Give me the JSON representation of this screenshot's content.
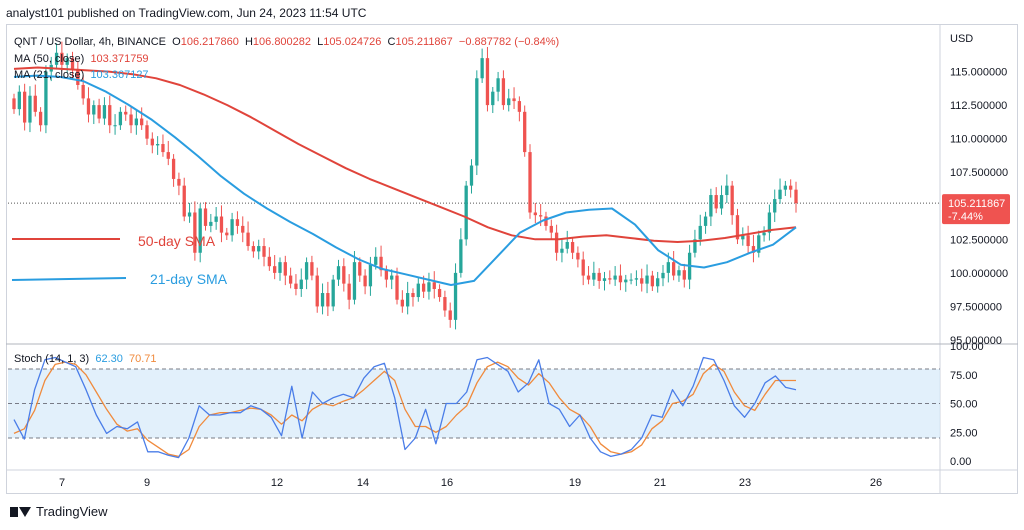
{
  "header": {
    "publisher": "analyst101 published on TradingView.com, Jun 24, 2023 11:54 UTC"
  },
  "legend": {
    "symbol": "QNT / US Dollar, 4h, BINANCE",
    "o_label": "O",
    "o": "106.217860",
    "h_label": "H",
    "h": "106.800282",
    "l_label": "L",
    "l": "105.024726",
    "c_label": "C",
    "c": "105.211867",
    "change": "−0.887782 (−0.84%)",
    "ma50_label": "MA (50, close)",
    "ma50": "103.371759",
    "ma21_label": "MA (21, close)",
    "ma21": "103.367127",
    "stoch_label": "Stoch (14, 1, 3)",
    "stoch_k": "62.30",
    "stoch_d": "70.71"
  },
  "annotations": {
    "sma50": "50-day SMA",
    "sma21": "21-day SMA"
  },
  "price_axis": {
    "currency": "USD",
    "ticks": [
      "115.000000",
      "112.500000",
      "110.000000",
      "107.500000",
      "102.500000",
      "100.000000",
      "97.500000",
      "95.000000"
    ],
    "last_price": "105.211867",
    "last_change": "-7.44%"
  },
  "stoch_axis": {
    "ticks": [
      "100.00",
      "75.00",
      "50.00",
      "25.00",
      "0.00"
    ]
  },
  "time_axis": {
    "ticks": [
      "7",
      "9",
      "12",
      "14",
      "16",
      "19",
      "21",
      "23",
      "26"
    ]
  },
  "footer": {
    "brand": "TradingView"
  },
  "colors": {
    "up": "#26a69a",
    "down": "#ef5350",
    "ma50": "#e0443b",
    "ma21": "#2a9de0",
    "stoch_k": "#4a7de8",
    "stoch_d": "#f08a3c",
    "band": "#d6e9f9"
  },
  "chart_data": [
    {
      "type": "candlestick",
      "title": "QNT / US Dollar, 4h, BINANCE",
      "ylabel": "USD",
      "ylim": [
        95,
        117.5
      ],
      "x_ticks": [
        "7",
        "9",
        "12",
        "14",
        "16",
        "19",
        "21",
        "23",
        "26"
      ],
      "closes": [
        112.2,
        113.5,
        111.2,
        113.2,
        112.0,
        111.0,
        115.0,
        115.5,
        116.4,
        115.5,
        116.0,
        115.2,
        114.0,
        113.0,
        111.8,
        112.5,
        111.5,
        112.5,
        111.0,
        111.0,
        112.0,
        111.8,
        111.0,
        111.5,
        111.0,
        110.0,
        109.5,
        109.6,
        109.0,
        108.5,
        107.0,
        106.5,
        104.2,
        104.5,
        101.5,
        104.8,
        103.5,
        103.8,
        104.2,
        103.0,
        102.8,
        104.0,
        103.5,
        103.0,
        102.0,
        101.6,
        102.0,
        101.2,
        100.5,
        100.0,
        100.8,
        99.8,
        99.2,
        98.8,
        99.5,
        100.8,
        99.8,
        97.5,
        98.5,
        97.5,
        99.5,
        100.5,
        99.2,
        98.0,
        100.8,
        99.8,
        99.0,
        100.6,
        101.2,
        100.2,
        99.5,
        99.8,
        98.0,
        97.5,
        98.5,
        98.2,
        99.2,
        98.6,
        99.3,
        98.8,
        98.2,
        97.2,
        96.5,
        100.0,
        102.5,
        106.5,
        108.0,
        114.5,
        116.0,
        112.5,
        113.5,
        114.5,
        112.5,
        113.0,
        112.8,
        112.0,
        109.0,
        104.5,
        104.3,
        104.2,
        103.5,
        103.0,
        101.5,
        101.8,
        102.3,
        101.5,
        101.0,
        99.8,
        99.5,
        100.0,
        99.4,
        99.6,
        99.5,
        99.8,
        99.3,
        99.5,
        99.5,
        99.6,
        99.2,
        99.8,
        99.0,
        99.6,
        100.0,
        100.8,
        99.8,
        100.2,
        99.5,
        101.5,
        102.5,
        103.5,
        104.2,
        105.8,
        104.8,
        105.8,
        106.5,
        104.3,
        102.5,
        102.8,
        102.0,
        101.5,
        102.8,
        103.0,
        104.5,
        105.5,
        106.2,
        106.5,
        106.2,
        105.2
      ],
      "series": [
        {
          "name": "MA (50, close)",
          "values": [
            115.2,
            115.3,
            115.2,
            115.1,
            115.0,
            114.8,
            114.5,
            114.0,
            113.3,
            112.5,
            111.6,
            110.6,
            109.6,
            108.7,
            107.8,
            107.0,
            106.3,
            105.6,
            104.9,
            104.2,
            103.4,
            102.8,
            102.5,
            102.5,
            102.7,
            102.8,
            102.6,
            102.4,
            102.3,
            102.4,
            102.6,
            102.9,
            103.2,
            103.4
          ]
        },
        {
          "name": "MA (21, close)",
          "values": [
            114.6,
            114.7,
            114.6,
            114.3,
            113.5,
            112.5,
            111.4,
            110.1,
            108.7,
            107.2,
            105.9,
            104.8,
            103.8,
            102.9,
            101.9,
            101.0,
            100.3,
            99.9,
            99.5,
            99.1,
            99.4,
            101.2,
            103.0,
            103.9,
            104.5,
            104.7,
            104.8,
            103.6,
            101.7,
            100.6,
            100.4,
            100.8,
            101.5,
            102.1,
            103.4
          ]
        }
      ]
    },
    {
      "type": "line",
      "title": "Stoch (14, 1, 3)",
      "ylim": [
        0,
        100
      ],
      "series": [
        {
          "name": "%K",
          "values": [
            36,
            19,
            62,
            88,
            90,
            86,
            82,
            62,
            40,
            24,
            30,
            28,
            34,
            8,
            8,
            5,
            3,
            20,
            48,
            40,
            40,
            42,
            42,
            48,
            45,
            38,
            22,
            65,
            20,
            60,
            50,
            55,
            58,
            55,
            72,
            82,
            85,
            55,
            10,
            20,
            45,
            15,
            50,
            50,
            60,
            88,
            90,
            84,
            78,
            60,
            68,
            88,
            50,
            45,
            30,
            40,
            20,
            8,
            4,
            6,
            10,
            20,
            40,
            38,
            62,
            48,
            65,
            90,
            88,
            70,
            48,
            38,
            50,
            68,
            74,
            64,
            62
          ]
        },
        {
          "name": "%D",
          "values": [
            24,
            28,
            44,
            70,
            84,
            86,
            84,
            75,
            60,
            45,
            32,
            26,
            28,
            18,
            12,
            6,
            4,
            10,
            30,
            40,
            42,
            42,
            44,
            46,
            45,
            40,
            32,
            40,
            35,
            45,
            50,
            48,
            52,
            55,
            62,
            70,
            78,
            70,
            45,
            30,
            30,
            25,
            30,
            40,
            48,
            68,
            82,
            86,
            82,
            72,
            66,
            76,
            68,
            55,
            45,
            40,
            30,
            15,
            8,
            6,
            8,
            14,
            28,
            35,
            50,
            52,
            58,
            76,
            84,
            78,
            60,
            48,
            44,
            58,
            70,
            70,
            70
          ]
        }
      ]
    }
  ]
}
